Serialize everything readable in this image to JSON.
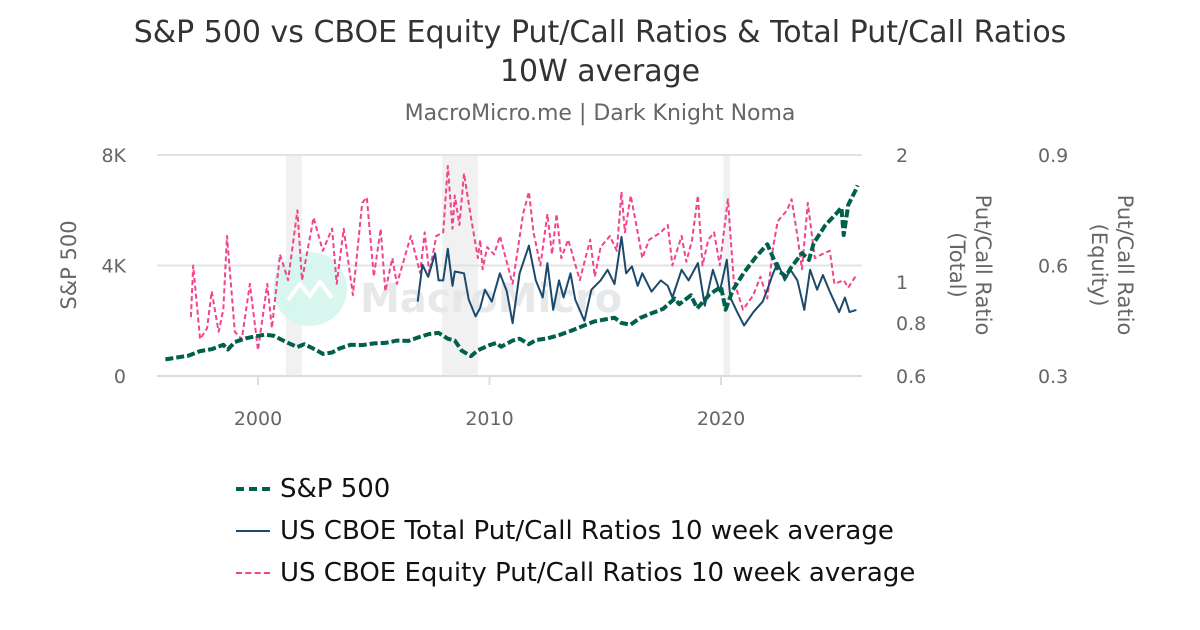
{
  "chart_data": {
    "type": "line",
    "title_line1": "S&P 500 vs CBOE Equity Put/Call Ratios & Total Put/Call Ratios",
    "title_line2": "10W average",
    "subtitle": "MacroMicro.me | Dark Knight Noma",
    "watermark": "MacroMicro",
    "x_axis": {
      "ticks": [
        "2000",
        "2010",
        "2020"
      ],
      "range": [
        1995.65,
        2026.1
      ]
    },
    "y_axes": {
      "left": {
        "label": "S&P 500",
        "ticks": [
          "0",
          "4K",
          "8K"
        ],
        "range": [
          0,
          8000
        ],
        "scale": "linear"
      },
      "right_total": {
        "label_line1": "Put/Call Ratio",
        "label_line2": "(Total)",
        "ticks": [
          "0.6",
          "0.8",
          "1",
          "2"
        ],
        "range": [
          0.6,
          2
        ],
        "scale": "log"
      },
      "right_equity": {
        "label_line1": "Put/Call Ratio",
        "label_line2": "(Equity)",
        "ticks": [
          "0.3",
          "0.6",
          "0.9"
        ],
        "range": [
          0.3,
          0.9
        ],
        "scale": "linear"
      }
    },
    "grid": true,
    "recessions": [
      [
        2001.2,
        2001.9
      ],
      [
        2007.95,
        2009.5
      ],
      [
        2020.1,
        2020.4
      ]
    ],
    "legend_position": "bottom",
    "series": [
      {
        "name": "S&P 500",
        "axis": "left",
        "color": "#00604b",
        "style": "dashed-thick",
        "points": [
          [
            1996.0,
            600
          ],
          [
            1996.5,
            670
          ],
          [
            1997.0,
            740
          ],
          [
            1997.5,
            900
          ],
          [
            1998.0,
            970
          ],
          [
            1998.5,
            1130
          ],
          [
            1998.7,
            960
          ],
          [
            1999.0,
            1230
          ],
          [
            1999.5,
            1370
          ],
          [
            2000.0,
            1450
          ],
          [
            2000.3,
            1500
          ],
          [
            2000.7,
            1450
          ],
          [
            2001.0,
            1320
          ],
          [
            2001.3,
            1200
          ],
          [
            2001.7,
            1050
          ],
          [
            2002.0,
            1150
          ],
          [
            2002.5,
            950
          ],
          [
            2002.8,
            800
          ],
          [
            2003.2,
            850
          ],
          [
            2003.5,
            990
          ],
          [
            2004.0,
            1130
          ],
          [
            2004.5,
            1120
          ],
          [
            2005.0,
            1180
          ],
          [
            2005.5,
            1200
          ],
          [
            2006.0,
            1280
          ],
          [
            2006.5,
            1270
          ],
          [
            2007.0,
            1420
          ],
          [
            2007.4,
            1520
          ],
          [
            2007.8,
            1560
          ],
          [
            2008.2,
            1350
          ],
          [
            2008.5,
            1280
          ],
          [
            2008.8,
            920
          ],
          [
            2009.2,
            720
          ],
          [
            2009.5,
            930
          ],
          [
            2010.0,
            1120
          ],
          [
            2010.3,
            1200
          ],
          [
            2010.5,
            1060
          ],
          [
            2011.0,
            1280
          ],
          [
            2011.3,
            1350
          ],
          [
            2011.7,
            1150
          ],
          [
            2012.0,
            1300
          ],
          [
            2012.5,
            1360
          ],
          [
            2013.0,
            1480
          ],
          [
            2013.5,
            1630
          ],
          [
            2014.0,
            1800
          ],
          [
            2014.5,
            1970
          ],
          [
            2015.0,
            2050
          ],
          [
            2015.4,
            2110
          ],
          [
            2015.7,
            1920
          ],
          [
            2016.1,
            1860
          ],
          [
            2016.5,
            2100
          ],
          [
            2017.0,
            2270
          ],
          [
            2017.5,
            2430
          ],
          [
            2018.0,
            2800
          ],
          [
            2018.2,
            2600
          ],
          [
            2018.7,
            2920
          ],
          [
            2018.97,
            2450
          ],
          [
            2019.5,
            2950
          ],
          [
            2020.0,
            3230
          ],
          [
            2020.2,
            2400
          ],
          [
            2020.5,
            3100
          ],
          [
            2021.0,
            3750
          ],
          [
            2021.5,
            4300
          ],
          [
            2022.0,
            4770
          ],
          [
            2022.5,
            3800
          ],
          [
            2022.8,
            3600
          ],
          [
            2023.0,
            3900
          ],
          [
            2023.5,
            4450
          ],
          [
            2023.8,
            4200
          ],
          [
            2024.0,
            4800
          ],
          [
            2024.5,
            5450
          ],
          [
            2025.0,
            5900
          ],
          [
            2025.2,
            6100
          ],
          [
            2025.3,
            5100
          ],
          [
            2025.5,
            6200
          ],
          [
            2025.8,
            6700
          ],
          [
            2025.9,
            6900
          ]
        ]
      },
      {
        "name": "US CBOE Total Put/Call Ratios 10 week average",
        "axis": "right_total",
        "color": "#1b4a6e",
        "style": "solid",
        "points": [
          [
            2006.9,
            0.9
          ],
          [
            2007.1,
            1.1
          ],
          [
            2007.35,
            1.03
          ],
          [
            2007.65,
            1.17
          ],
          [
            2007.8,
            1.01
          ],
          [
            2008.0,
            1.01
          ],
          [
            2008.2,
            1.2
          ],
          [
            2008.4,
            0.98
          ],
          [
            2008.5,
            1.06
          ],
          [
            2008.9,
            1.05
          ],
          [
            2009.1,
            0.91
          ],
          [
            2009.4,
            0.83
          ],
          [
            2009.6,
            0.87
          ],
          [
            2009.8,
            0.96
          ],
          [
            2010.1,
            0.9
          ],
          [
            2010.45,
            1.05
          ],
          [
            2010.75,
            0.95
          ],
          [
            2011.0,
            0.8
          ],
          [
            2011.3,
            1.05
          ],
          [
            2011.7,
            1.22
          ],
          [
            2012.0,
            1.01
          ],
          [
            2012.3,
            0.92
          ],
          [
            2012.5,
            1.11
          ],
          [
            2012.75,
            0.86
          ],
          [
            2013.0,
            1.01
          ],
          [
            2013.2,
            0.92
          ],
          [
            2013.5,
            1.05
          ],
          [
            2013.7,
            0.91
          ],
          [
            2014.1,
            0.81
          ],
          [
            2014.4,
            0.96
          ],
          [
            2014.8,
            1.01
          ],
          [
            2015.1,
            1.07
          ],
          [
            2015.4,
            0.99
          ],
          [
            2015.7,
            1.28
          ],
          [
            2015.9,
            1.05
          ],
          [
            2016.15,
            1.09
          ],
          [
            2016.4,
            0.98
          ],
          [
            2016.6,
            1.05
          ],
          [
            2017.0,
            0.95
          ],
          [
            2017.4,
            1.01
          ],
          [
            2017.7,
            0.98
          ],
          [
            2017.9,
            0.92
          ],
          [
            2018.3,
            1.07
          ],
          [
            2018.6,
            1.01
          ],
          [
            2019.0,
            1.11
          ],
          [
            2019.3,
            0.88
          ],
          [
            2019.65,
            1.07
          ],
          [
            2019.95,
            0.95
          ],
          [
            2020.25,
            1.13
          ],
          [
            2020.4,
            0.92
          ],
          [
            2020.7,
            0.85
          ],
          [
            2021.0,
            0.79
          ],
          [
            2021.4,
            0.85
          ],
          [
            2021.8,
            0.9
          ],
          [
            2022.0,
            0.96
          ],
          [
            2022.25,
            1.05
          ],
          [
            2022.45,
            1.11
          ],
          [
            2022.75,
            1.01
          ],
          [
            2023.0,
            1.07
          ],
          [
            2023.3,
            1.01
          ],
          [
            2023.6,
            0.86
          ],
          [
            2023.85,
            1.07
          ],
          [
            2024.15,
            0.96
          ],
          [
            2024.4,
            1.04
          ],
          [
            2024.7,
            0.95
          ],
          [
            2025.1,
            0.85
          ],
          [
            2025.35,
            0.92
          ],
          [
            2025.55,
            0.85
          ],
          [
            2025.85,
            0.86
          ]
        ]
      },
      {
        "name": "US CBOE Equity Put/Call Ratios 10 week average",
        "axis": "right_equity",
        "color": "#f0458a",
        "style": "dashed",
        "points": [
          [
            1997.1,
            0.46
          ],
          [
            1997.2,
            0.6
          ],
          [
            1997.5,
            0.4
          ],
          [
            1997.8,
            0.43
          ],
          [
            1998.0,
            0.53
          ],
          [
            1998.3,
            0.42
          ],
          [
            1998.5,
            0.48
          ],
          [
            1998.66,
            0.68
          ],
          [
            1999.0,
            0.42
          ],
          [
            1999.3,
            0.4
          ],
          [
            1999.65,
            0.55
          ],
          [
            2000.0,
            0.37
          ],
          [
            2000.4,
            0.55
          ],
          [
            2000.6,
            0.43
          ],
          [
            2000.95,
            0.63
          ],
          [
            2001.3,
            0.56
          ],
          [
            2001.7,
            0.75
          ],
          [
            2001.9,
            0.56
          ],
          [
            2002.4,
            0.73
          ],
          [
            2002.8,
            0.64
          ],
          [
            2003.2,
            0.7
          ],
          [
            2003.4,
            0.55
          ],
          [
            2003.7,
            0.7
          ],
          [
            2004.1,
            0.52
          ],
          [
            2004.5,
            0.77
          ],
          [
            2004.7,
            0.785
          ],
          [
            2005.0,
            0.57
          ],
          [
            2005.3,
            0.7
          ],
          [
            2005.5,
            0.53
          ],
          [
            2005.8,
            0.62
          ],
          [
            2006.0,
            0.55
          ],
          [
            2006.6,
            0.68
          ],
          [
            2007.0,
            0.58
          ],
          [
            2007.2,
            0.69
          ],
          [
            2007.4,
            0.58
          ],
          [
            2007.7,
            0.68
          ],
          [
            2008.0,
            0.69
          ],
          [
            2008.2,
            0.87
          ],
          [
            2008.4,
            0.7
          ],
          [
            2008.5,
            0.79
          ],
          [
            2008.7,
            0.71
          ],
          [
            2008.9,
            0.85
          ],
          [
            2009.2,
            0.73
          ],
          [
            2009.5,
            0.62
          ],
          [
            2009.6,
            0.67
          ],
          [
            2009.7,
            0.59
          ],
          [
            2009.9,
            0.65
          ],
          [
            2010.2,
            0.63
          ],
          [
            2010.45,
            0.68
          ],
          [
            2011.0,
            0.55
          ],
          [
            2011.45,
            0.74
          ],
          [
            2011.7,
            0.8
          ],
          [
            2011.9,
            0.69
          ],
          [
            2012.2,
            0.6
          ],
          [
            2012.5,
            0.74
          ],
          [
            2012.7,
            0.63
          ],
          [
            2012.9,
            0.74
          ],
          [
            2013.1,
            0.62
          ],
          [
            2013.4,
            0.67
          ],
          [
            2013.9,
            0.56
          ],
          [
            2014.35,
            0.67
          ],
          [
            2014.55,
            0.57
          ],
          [
            2014.8,
            0.65
          ],
          [
            2015.2,
            0.68
          ],
          [
            2015.5,
            0.64
          ],
          [
            2015.7,
            0.8
          ],
          [
            2015.85,
            0.69
          ],
          [
            2016.1,
            0.79
          ],
          [
            2016.4,
            0.69
          ],
          [
            2016.6,
            0.62
          ],
          [
            2016.9,
            0.67
          ],
          [
            2017.4,
            0.69
          ],
          [
            2017.7,
            0.71
          ],
          [
            2017.9,
            0.6
          ],
          [
            2018.3,
            0.68
          ],
          [
            2018.5,
            0.61
          ],
          [
            2018.75,
            0.67
          ],
          [
            2019.0,
            0.79
          ],
          [
            2019.2,
            0.6
          ],
          [
            2019.45,
            0.67
          ],
          [
            2019.7,
            0.69
          ],
          [
            2019.95,
            0.6
          ],
          [
            2020.3,
            0.78
          ],
          [
            2020.55,
            0.56
          ],
          [
            2020.95,
            0.48
          ],
          [
            2021.4,
            0.52
          ],
          [
            2021.7,
            0.57
          ],
          [
            2022.0,
            0.51
          ],
          [
            2022.25,
            0.65
          ],
          [
            2022.45,
            0.72
          ],
          [
            2022.85,
            0.75
          ],
          [
            2023.05,
            0.78
          ],
          [
            2023.3,
            0.68
          ],
          [
            2023.5,
            0.59
          ],
          [
            2023.75,
            0.77
          ],
          [
            2024.05,
            0.62
          ],
          [
            2024.35,
            0.63
          ],
          [
            2024.7,
            0.64
          ],
          [
            2024.9,
            0.55
          ],
          [
            2025.3,
            0.56
          ],
          [
            2025.5,
            0.54
          ],
          [
            2025.8,
            0.57
          ]
        ]
      }
    ]
  }
}
